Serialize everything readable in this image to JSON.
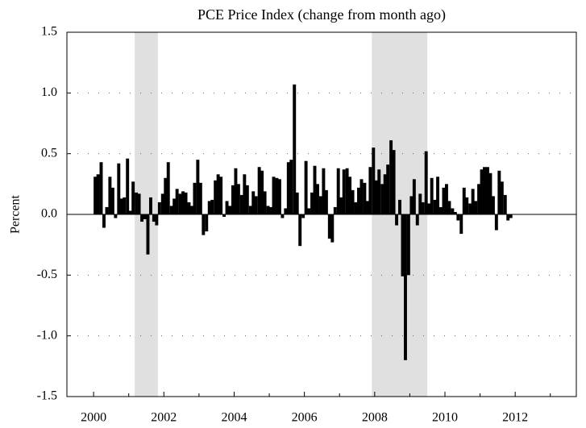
{
  "chart_data": {
    "type": "bar",
    "title": "PCE Price Index (change from month ago)",
    "ylabel": "Percent",
    "color": "#000000",
    "shade_color": "#e0e0e0",
    "shaded_regions": [
      [
        2001.17,
        2001.83
      ],
      [
        2007.92,
        2009.5
      ]
    ],
    "xlim": [
      1999.24,
      2013.74
    ],
    "ylim": [
      -1.5,
      1.5
    ],
    "xticks": [
      2000,
      2002,
      2004,
      2006,
      2008,
      2010,
      2012
    ],
    "xminorticks": [
      2001,
      2003,
      2005,
      2007,
      2009,
      2011,
      2013
    ],
    "yticks": [
      1.5,
      {
        "value": 1,
        "label": "1.0"
      },
      0.5,
      {
        "value": 0,
        "label": "0.0"
      },
      -0.5,
      {
        "value": -1,
        "label": "-1.0"
      },
      -1.5
    ],
    "grid": true,
    "x": [
      2000.0,
      2000.08,
      2000.17,
      2000.25,
      2000.33,
      2000.42,
      2000.5,
      2000.58,
      2000.67,
      2000.75,
      2000.83,
      2000.92,
      2001.0,
      2001.08,
      2001.17,
      2001.25,
      2001.33,
      2001.42,
      2001.5,
      2001.58,
      2001.67,
      2001.75,
      2001.83,
      2001.92,
      2002.0,
      2002.08,
      2002.17,
      2002.25,
      2002.33,
      2002.42,
      2002.5,
      2002.58,
      2002.67,
      2002.75,
      2002.83,
      2002.92,
      2003.0,
      2003.08,
      2003.17,
      2003.25,
      2003.33,
      2003.42,
      2003.5,
      2003.58,
      2003.67,
      2003.75,
      2003.83,
      2003.92,
      2004.0,
      2004.08,
      2004.17,
      2004.25,
      2004.33,
      2004.42,
      2004.5,
      2004.58,
      2004.67,
      2004.75,
      2004.83,
      2004.92,
      2005.0,
      2005.08,
      2005.17,
      2005.25,
      2005.33,
      2005.42,
      2005.5,
      2005.58,
      2005.67,
      2005.75,
      2005.83,
      2005.92,
      2006.0,
      2006.08,
      2006.17,
      2006.25,
      2006.33,
      2006.42,
      2006.5,
      2006.58,
      2006.67,
      2006.75,
      2006.83,
      2006.92,
      2007.0,
      2007.08,
      2007.17,
      2007.25,
      2007.33,
      2007.42,
      2007.5,
      2007.58,
      2007.67,
      2007.75,
      2007.83,
      2007.92,
      2008.0,
      2008.08,
      2008.17,
      2008.25,
      2008.33,
      2008.42,
      2008.5,
      2008.58,
      2008.67,
      2008.75,
      2008.83,
      2008.92,
      2009.0,
      2009.08,
      2009.17,
      2009.25,
      2009.33,
      2009.42,
      2009.5,
      2009.58,
      2009.67,
      2009.75,
      2009.83,
      2009.92,
      2010.0,
      2010.08,
      2010.17,
      2010.25,
      2010.33,
      2010.42,
      2010.5,
      2010.58,
      2010.67,
      2010.75,
      2010.83,
      2010.92,
      2011.0,
      2011.08,
      2011.17,
      2011.25,
      2011.33,
      2011.42,
      2011.5,
      2011.58,
      2011.67,
      2011.75,
      2011.83
    ],
    "values": [
      0.31,
      0.33,
      0.43,
      -0.11,
      0.06,
      0.31,
      0.22,
      -0.03,
      0.42,
      0.13,
      0.14,
      0.46,
      0.03,
      0.27,
      0.18,
      0.17,
      -0.06,
      -0.04,
      -0.33,
      0.14,
      -0.06,
      -0.09,
      0.1,
      0.17,
      0.3,
      0.43,
      0.07,
      0.13,
      0.21,
      0.17,
      0.19,
      0.18,
      0.1,
      0.07,
      0.26,
      0.45,
      0.26,
      -0.17,
      -0.14,
      0.11,
      0.12,
      0.28,
      0.33,
      0.31,
      -0.02,
      0.11,
      0.07,
      0.24,
      0.38,
      0.25,
      0.16,
      0.33,
      0.24,
      0.07,
      0.19,
      0.15,
      0.39,
      0.36,
      0.19,
      0.07,
      0.06,
      0.31,
      0.3,
      0.29,
      -0.03,
      0.05,
      0.43,
      0.45,
      1.07,
      0.18,
      -0.26,
      -0.03,
      0.44,
      0.05,
      0.18,
      0.4,
      0.25,
      0.15,
      0.38,
      0.2,
      -0.2,
      -0.23,
      0.06,
      0.38,
      0.14,
      0.37,
      0.38,
      0.31,
      0.2,
      0.1,
      0.22,
      0.29,
      0.26,
      0.11,
      0.39,
      0.55,
      0.28,
      0.37,
      0.25,
      0.33,
      0.41,
      0.61,
      0.53,
      -0.09,
      0.12,
      -0.51,
      -1.2,
      -0.5,
      0.15,
      0.29,
      -0.09,
      0.17,
      0.1,
      0.52,
      0.09,
      0.3,
      0.12,
      0.31,
      0.06,
      0.22,
      0.25,
      0.11,
      0.05,
      0.02,
      -0.05,
      -0.16,
      0.22,
      0.14,
      0.09,
      0.21,
      0.11,
      0.25,
      0.37,
      0.39,
      0.39,
      0.34,
      0.15,
      -0.13,
      0.36,
      0.27,
      0.16,
      -0.05,
      -0.03
    ]
  }
}
